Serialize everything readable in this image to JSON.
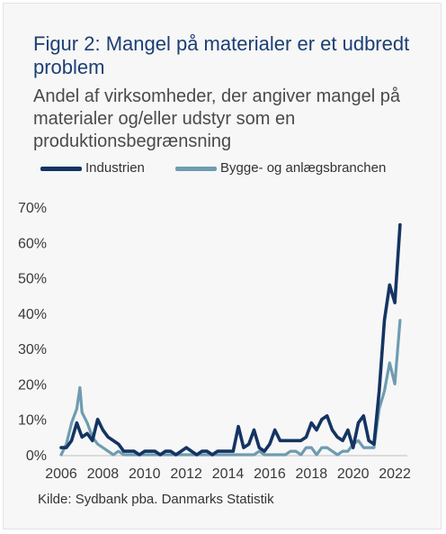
{
  "header": {
    "title": "Figur 2: Mangel på materialer er et udbredt problem",
    "subtitle": "Andel af virksomheder, der angiver mangel på materialer og/eller udstyr som en produktionsbegrænsning"
  },
  "source": "Kilde: Sydbank pba. Danmarks Statistik",
  "colors": {
    "industrien": "#143462",
    "bygge": "#6e9cb0",
    "frame_bg": "#f7f7f7"
  },
  "chart_data": {
    "type": "line",
    "title": "",
    "xlabel": "",
    "ylabel": "",
    "xlim": [
      2006,
      2022.6
    ],
    "ylim": [
      0,
      70
    ],
    "x_ticks": [
      "2006",
      "2008",
      "2010",
      "2012",
      "2014",
      "2016",
      "2018",
      "2020",
      "2022"
    ],
    "y_ticks": [
      "0%",
      "10%",
      "20%",
      "30%",
      "40%",
      "50%",
      "60%",
      "70%"
    ],
    "y_tick_values": [
      0,
      10,
      20,
      30,
      40,
      50,
      60,
      70
    ],
    "x_tick_values": [
      2006,
      2008,
      2010,
      2012,
      2014,
      2016,
      2018,
      2020,
      2022
    ],
    "grid": false,
    "legend_position": "top",
    "series": [
      {
        "name": "Industrien",
        "color": "#143462",
        "points": [
          [
            2006.0,
            2
          ],
          [
            2006.25,
            2
          ],
          [
            2006.5,
            4
          ],
          [
            2006.75,
            9
          ],
          [
            2007.0,
            5
          ],
          [
            2007.25,
            6
          ],
          [
            2007.5,
            4
          ],
          [
            2007.75,
            10
          ],
          [
            2008.0,
            7
          ],
          [
            2008.25,
            5
          ],
          [
            2008.5,
            4
          ],
          [
            2008.75,
            3
          ],
          [
            2009.0,
            1
          ],
          [
            2009.25,
            1
          ],
          [
            2009.5,
            1
          ],
          [
            2009.75,
            0
          ],
          [
            2010.0,
            1
          ],
          [
            2010.25,
            1
          ],
          [
            2010.5,
            1
          ],
          [
            2010.75,
            0
          ],
          [
            2011.0,
            1
          ],
          [
            2011.25,
            1
          ],
          [
            2011.5,
            0
          ],
          [
            2011.75,
            1
          ],
          [
            2012.0,
            2
          ],
          [
            2012.25,
            1
          ],
          [
            2012.5,
            0
          ],
          [
            2012.75,
            1
          ],
          [
            2013.0,
            1
          ],
          [
            2013.25,
            0
          ],
          [
            2013.5,
            1
          ],
          [
            2013.75,
            1
          ],
          [
            2014.0,
            1
          ],
          [
            2014.25,
            1
          ],
          [
            2014.5,
            8
          ],
          [
            2014.75,
            2
          ],
          [
            2015.0,
            3
          ],
          [
            2015.25,
            7
          ],
          [
            2015.5,
            2
          ],
          [
            2015.75,
            1
          ],
          [
            2016.0,
            3
          ],
          [
            2016.25,
            7
          ],
          [
            2016.5,
            4
          ],
          [
            2016.75,
            4
          ],
          [
            2017.0,
            4
          ],
          [
            2017.25,
            4
          ],
          [
            2017.5,
            4
          ],
          [
            2017.75,
            5
          ],
          [
            2018.0,
            9
          ],
          [
            2018.25,
            7
          ],
          [
            2018.5,
            10
          ],
          [
            2018.75,
            11
          ],
          [
            2019.0,
            7
          ],
          [
            2019.25,
            5
          ],
          [
            2019.5,
            4
          ],
          [
            2019.75,
            7
          ],
          [
            2020.0,
            2
          ],
          [
            2020.25,
            9
          ],
          [
            2020.5,
            11
          ],
          [
            2020.75,
            4
          ],
          [
            2021.0,
            3
          ],
          [
            2021.25,
            18
          ],
          [
            2021.5,
            38
          ],
          [
            2021.75,
            48
          ],
          [
            2022.0,
            43
          ],
          [
            2022.25,
            65
          ]
        ]
      },
      {
        "name": "Bygge- og anlægsbranchen",
        "color": "#6e9cb0",
        "points": [
          [
            2006.0,
            0
          ],
          [
            2006.25,
            3
          ],
          [
            2006.5,
            9
          ],
          [
            2006.75,
            13
          ],
          [
            2006.9,
            19
          ],
          [
            2007.0,
            12
          ],
          [
            2007.25,
            9
          ],
          [
            2007.5,
            5
          ],
          [
            2007.75,
            3
          ],
          [
            2008.0,
            2
          ],
          [
            2008.25,
            1
          ],
          [
            2008.5,
            0
          ],
          [
            2008.75,
            1
          ],
          [
            2009.0,
            0
          ],
          [
            2009.25,
            0
          ],
          [
            2009.5,
            0
          ],
          [
            2009.75,
            0
          ],
          [
            2010.0,
            0
          ],
          [
            2010.25,
            0
          ],
          [
            2010.5,
            0
          ],
          [
            2010.75,
            0
          ],
          [
            2011.0,
            0
          ],
          [
            2011.25,
            0
          ],
          [
            2011.5,
            0
          ],
          [
            2011.75,
            0
          ],
          [
            2012.0,
            0
          ],
          [
            2012.25,
            0
          ],
          [
            2012.5,
            0
          ],
          [
            2012.75,
            0
          ],
          [
            2013.0,
            0
          ],
          [
            2013.25,
            0
          ],
          [
            2013.5,
            0
          ],
          [
            2013.75,
            0
          ],
          [
            2014.0,
            0
          ],
          [
            2014.25,
            0
          ],
          [
            2014.5,
            0
          ],
          [
            2014.75,
            0
          ],
          [
            2015.0,
            0
          ],
          [
            2015.25,
            0
          ],
          [
            2015.5,
            1
          ],
          [
            2015.75,
            0
          ],
          [
            2016.0,
            0
          ],
          [
            2016.25,
            0
          ],
          [
            2016.5,
            0
          ],
          [
            2016.75,
            0
          ],
          [
            2017.0,
            1
          ],
          [
            2017.25,
            1
          ],
          [
            2017.5,
            0
          ],
          [
            2017.75,
            2
          ],
          [
            2018.0,
            2
          ],
          [
            2018.25,
            0
          ],
          [
            2018.5,
            2
          ],
          [
            2018.75,
            2
          ],
          [
            2019.0,
            1
          ],
          [
            2019.25,
            0
          ],
          [
            2019.5,
            1
          ],
          [
            2019.75,
            1
          ],
          [
            2020.0,
            3
          ],
          [
            2020.25,
            4
          ],
          [
            2020.5,
            2
          ],
          [
            2020.75,
            2
          ],
          [
            2021.0,
            2
          ],
          [
            2021.25,
            13
          ],
          [
            2021.5,
            18
          ],
          [
            2021.75,
            26
          ],
          [
            2022.0,
            20
          ],
          [
            2022.25,
            38
          ]
        ]
      }
    ]
  }
}
